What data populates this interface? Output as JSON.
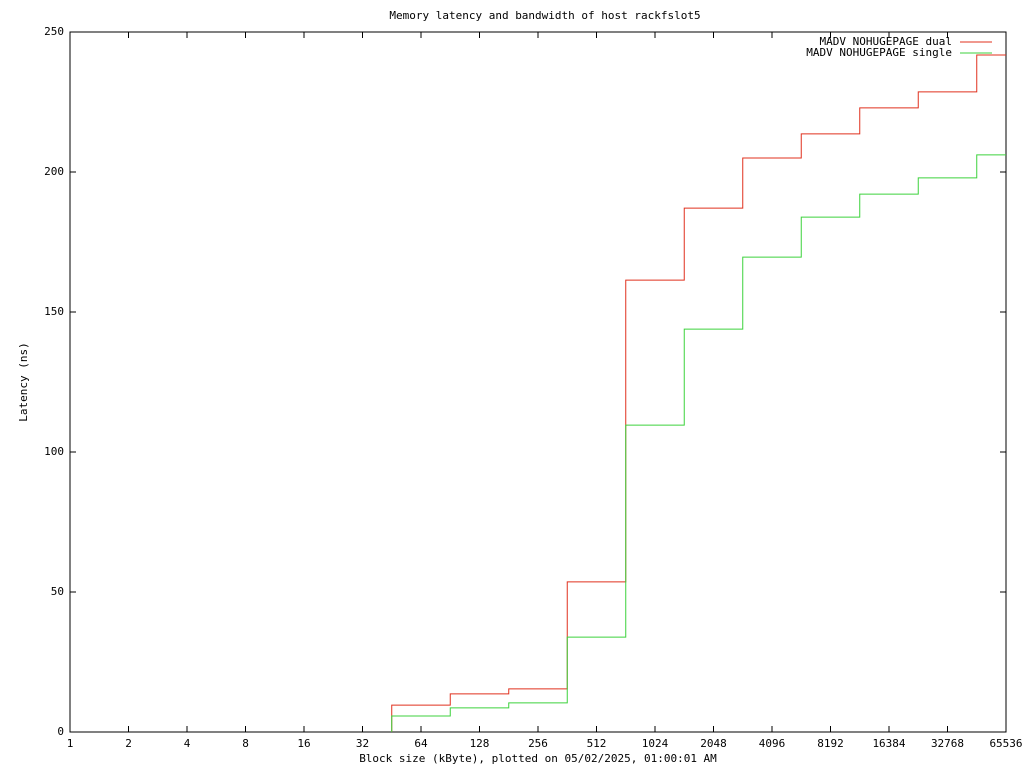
{
  "chart_data": {
    "type": "step",
    "title": "Memory latency and bandwidth of host rackfslot5",
    "x_label": "Block size (kByte), plotted on 05/02/2025, 01:00:01 AM",
    "y_label": "Latency (ns)",
    "x": [
      45.25,
      90.51,
      181.02,
      362.04,
      724.08,
      1448.15,
      2896.31,
      5792.62,
      11585.24,
      23170.48,
      46340.95
    ],
    "series": [
      {
        "name": "MADV NOHUGEPAGE dual",
        "color": "#e0301e",
        "values": [
          9.6,
          13.6,
          15.4,
          53.6,
          161.4,
          187.1,
          205,
          213.6,
          222.9,
          228.6,
          241.8
        ]
      },
      {
        "name": "MADV NOHUGEPAGE single",
        "color": "#3cd23c",
        "values": [
          5.7,
          8.6,
          10.4,
          33.9,
          109.6,
          143.9,
          169.6,
          183.9,
          192.1,
          197.9,
          206.1
        ]
      }
    ],
    "log_x_base": 2,
    "xlim": [
      1,
      65536
    ],
    "xticks": [
      1,
      2,
      4,
      8,
      16,
      32,
      64,
      128,
      256,
      512,
      1024,
      2048,
      4096,
      8192,
      16384,
      32768,
      65536
    ],
    "ylim": [
      0,
      250
    ],
    "yticks": [
      0,
      50,
      100,
      150,
      200,
      250
    ],
    "legend": "top-right"
  }
}
